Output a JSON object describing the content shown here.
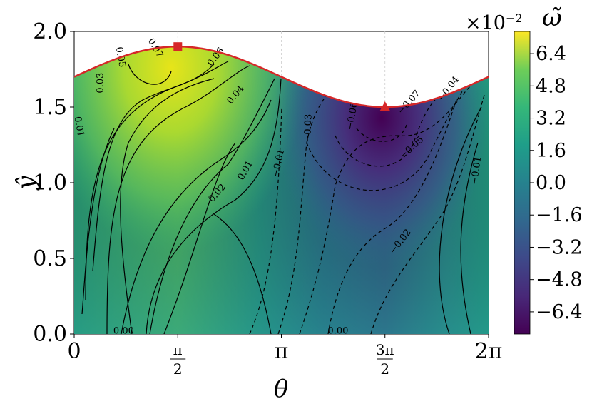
{
  "chart_data": {
    "type": "heatmap",
    "title": "",
    "xlabel": "θ",
    "ylabel": "ŷ",
    "colorbar_label": "ω̃",
    "colorbar_multiplier": "×10",
    "colorbar_exponent": "−2",
    "colormap": "viridis",
    "xlim": [
      0,
      6.2832
    ],
    "ylim": [
      0.0,
      2.0
    ],
    "x_ticks": [
      {
        "value": 0,
        "label": "0"
      },
      {
        "value": 1.5708,
        "num": "π",
        "den": "2"
      },
      {
        "value": 3.1416,
        "label": "π"
      },
      {
        "value": 4.7124,
        "num": "3π",
        "den": "2"
      },
      {
        "value": 6.2832,
        "label": "2π"
      }
    ],
    "y_ticks": [
      {
        "value": 0.0,
        "label": "0.0"
      },
      {
        "value": 0.5,
        "label": "0.5"
      },
      {
        "value": 1.0,
        "label": "1.0"
      },
      {
        "value": 1.5,
        "label": "1.5"
      },
      {
        "value": 2.0,
        "label": "2.0"
      }
    ],
    "colorbar_ticks": [
      {
        "value": 6.4,
        "label": "6.4"
      },
      {
        "value": 4.8,
        "label": "4.8"
      },
      {
        "value": 3.2,
        "label": "3.2"
      },
      {
        "value": 1.6,
        "label": "1.6"
      },
      {
        "value": 0.0,
        "label": "0.0"
      },
      {
        "value": -1.6,
        "label": "−1.6"
      },
      {
        "value": -3.2,
        "label": "−3.2"
      },
      {
        "value": -4.8,
        "label": "−4.8"
      },
      {
        "value": -6.4,
        "label": "−6.4"
      }
    ],
    "colorbar_range": [
      -7.5,
      7.5
    ],
    "boundary": {
      "description": "upper wall y = 1.7 + 0.2·sin(θ)",
      "mean": 1.7,
      "amplitude": 0.2,
      "color": "#d62728"
    },
    "markers": [
      {
        "shape": "square",
        "x": 1.5708,
        "y": 1.9,
        "color": "#d62728"
      },
      {
        "shape": "triangle",
        "x": 4.7124,
        "y": 1.5,
        "color": "#d62728"
      }
    ],
    "contour_labels": [
      {
        "text": "0.07",
        "x": 1.23,
        "y": 1.89,
        "rot": 60
      },
      {
        "text": "0.05",
        "x": 0.7,
        "y": 1.83,
        "rot": 80
      },
      {
        "text": "0.06",
        "x": 2.15,
        "y": 1.83,
        "rot": -52
      },
      {
        "text": "0.03",
        "x": 0.4,
        "y": 1.66,
        "rot": -90
      },
      {
        "text": "0.04",
        "x": 2.45,
        "y": 1.58,
        "rot": -50
      },
      {
        "text": "0.01",
        "x": 0.07,
        "y": 1.37,
        "rot": 80
      },
      {
        "text": "0.01",
        "x": 2.6,
        "y": 1.08,
        "rot": -60
      },
      {
        "text": "0.02",
        "x": 2.17,
        "y": 0.93,
        "rot": -48
      },
      {
        "text": "0.00",
        "x": 0.75,
        "y": 0.02,
        "rot": 0
      },
      {
        "text": "0.00",
        "x": 4.0,
        "y": 0.02,
        "rot": 0
      },
      {
        "text": "−0.01",
        "x": 3.1,
        "y": 1.13,
        "rot": -78
      },
      {
        "text": "−0.03",
        "x": 3.55,
        "y": 1.36,
        "rot": -88
      },
      {
        "text": "−0.06",
        "x": 4.22,
        "y": 1.44,
        "rot": -80
      },
      {
        "text": "−0.07",
        "x": 5.08,
        "y": 1.53,
        "rot": -48
      },
      {
        "text": "−0.04",
        "x": 5.68,
        "y": 1.62,
        "rot": -52
      },
      {
        "text": "−0.05",
        "x": 5.12,
        "y": 1.23,
        "rot": -42
      },
      {
        "text": "−0.02",
        "x": 4.95,
        "y": 0.61,
        "rot": -52
      },
      {
        "text": "−0.01",
        "x": 6.1,
        "y": 1.08,
        "rot": -82
      }
    ]
  }
}
